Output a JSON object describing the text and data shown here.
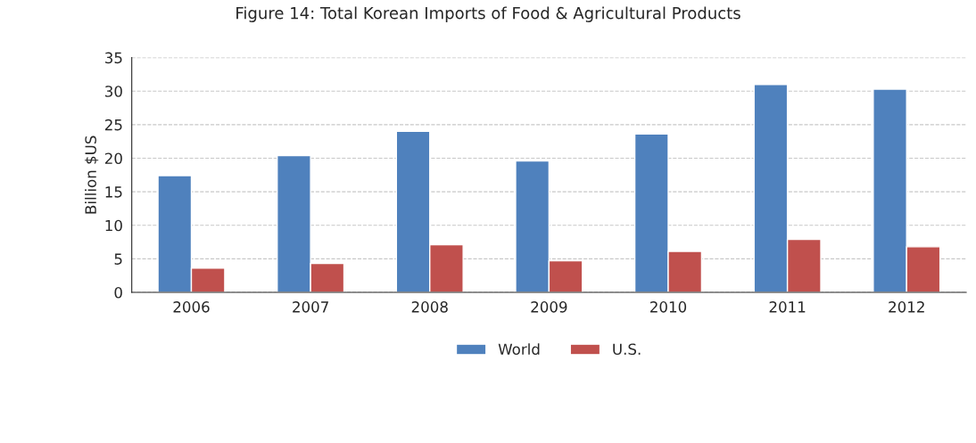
{
  "chart_data": {
    "type": "bar",
    "title": "Figure 14: Total Korean Imports of Food & Agricultural Products",
    "ylabel": "Billion $US",
    "categories": [
      "2006",
      "2007",
      "2008",
      "2009",
      "2010",
      "2011",
      "2012"
    ],
    "series": [
      {
        "name": "World",
        "color": "#4f81bd",
        "values": [
          17.4,
          20.4,
          24.0,
          19.6,
          23.6,
          31.0,
          30.3
        ]
      },
      {
        "name": "U.S.",
        "color": "#c0504d",
        "values": [
          3.6,
          4.3,
          7.1,
          4.7,
          6.1,
          7.9,
          6.8
        ]
      }
    ],
    "ylim": [
      0,
      35
    ],
    "yticks": [
      0,
      5,
      10,
      15,
      20,
      25,
      30,
      35
    ],
    "grid": "y",
    "legend": "bottom"
  }
}
